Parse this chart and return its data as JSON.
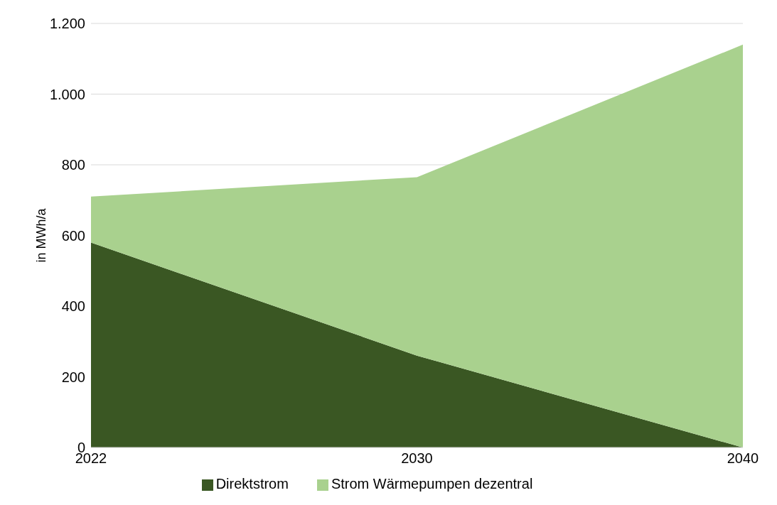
{
  "chart_data": {
    "type": "area",
    "stacked": true,
    "ylabel": "in MWh/a",
    "categories": [
      "2022",
      "2030",
      "2040"
    ],
    "series": [
      {
        "name": "Direktstrom",
        "color": "#3a5723",
        "values": [
          580,
          260,
          0
        ]
      },
      {
        "name": "Strom Wärmepumpen dezentral",
        "color": "#a9d18e",
        "values": [
          130,
          505,
          1140
        ]
      }
    ],
    "ylim": [
      0,
      1200
    ],
    "yticks": [
      0,
      200,
      400,
      600,
      800,
      {
        "value": 1000,
        "label": "1.000"
      },
      {
        "value": 1200,
        "label": "1.200"
      }
    ],
    "grid": "y",
    "legend": "bottom"
  }
}
